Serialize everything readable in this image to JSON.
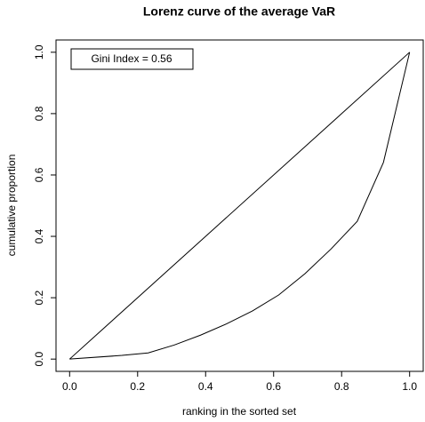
{
  "chart_data": {
    "type": "line",
    "title": "Lorenz curve of the average VaR",
    "xlabel": "ranking in the sorted set",
    "ylabel": "cumulative proportion",
    "annotation": "Gini Index = 0.56",
    "series": [
      {
        "color": "#000000",
        "x": [
          0,
          1
        ],
        "values": [
          0,
          1
        ]
      },
      {
        "color": "#000000",
        "x": [
          0,
          0.154,
          0.231,
          0.308,
          0.385,
          0.462,
          0.538,
          0.615,
          0.692,
          0.769,
          0.846,
          0.923,
          1
        ],
        "values": [
          0,
          0.012,
          0.02,
          0.046,
          0.078,
          0.115,
          0.157,
          0.209,
          0.278,
          0.359,
          0.449,
          0.641,
          1
        ]
      }
    ],
    "xlim": [
      -0.04,
      1.04
    ],
    "ylim": [
      -0.04,
      1.04
    ],
    "xticks": [
      {
        "value": 0,
        "label": "0.0"
      },
      0.2,
      0.4,
      0.6,
      0.8,
      {
        "value": 1,
        "label": "1.0"
      }
    ],
    "yticks": [
      {
        "value": 0,
        "label": "0.0"
      },
      0.2,
      0.4,
      0.6,
      0.8,
      {
        "value": 1,
        "label": "1.0"
      }
    ]
  }
}
